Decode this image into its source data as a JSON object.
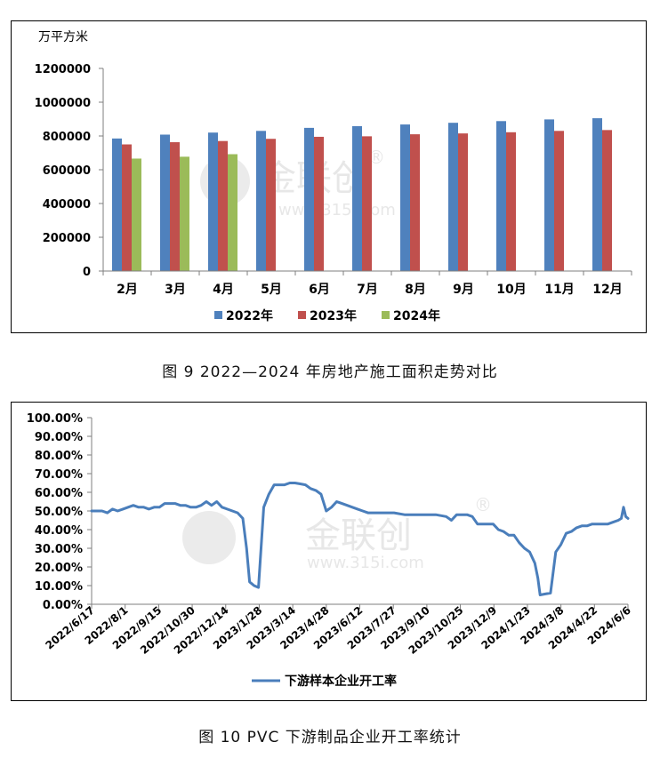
{
  "chart_data": [
    {
      "type": "bar",
      "ylabel": "万平方米",
      "ylim": [
        0,
        1200000
      ],
      "yticks": [
        "0",
        "200000",
        "400000",
        "600000",
        "800000",
        "1000000",
        "1200000"
      ],
      "categories": [
        "2月",
        "3月",
        "4月",
        "5月",
        "6月",
        "7月",
        "8月",
        "9月",
        "10月",
        "11月",
        "12月"
      ],
      "series": [
        {
          "name": "2022年",
          "color": "#4F81BD",
          "values": [
            785000,
            808000,
            820000,
            830000,
            848000,
            858000,
            868000,
            878000,
            888000,
            898000,
            905000
          ]
        },
        {
          "name": "2023年",
          "color": "#C0504D",
          "values": [
            750000,
            763000,
            770000,
            783000,
            795000,
            798000,
            810000,
            815000,
            822000,
            830000,
            835000
          ]
        },
        {
          "name": "2024年",
          "color": "#9BBB59",
          "values": [
            666000,
            677000,
            692000,
            null,
            null,
            null,
            null,
            null,
            null,
            null,
            null
          ]
        }
      ],
      "legend": "bottom",
      "grid": false,
      "watermark": {
        "brand": "金联创",
        "mark": "®",
        "url": "www.315i.com"
      }
    },
    {
      "type": "line",
      "ylim": [
        0,
        1
      ],
      "yticks": [
        "0.00%",
        "10.00%",
        "20.00%",
        "30.00%",
        "40.00%",
        "50.00%",
        "60.00%",
        "70.00%",
        "80.00%",
        "90.00%",
        "100.00%"
      ],
      "xlim": [
        "2022-06-17",
        "2024-06-06"
      ],
      "xticks": [
        "2022/6/17",
        "2022/8/1",
        "2022/9/15",
        "2022/10/30",
        "2022/12/14",
        "2023/1/28",
        "2023/3/14",
        "2023/4/28",
        "2023/6/12",
        "2023/7/27",
        "2023/9/10",
        "2023/10/25",
        "2023/12/9",
        "2024/1/23",
        "2024/3/8",
        "2024/4/22",
        "2024/6/6"
      ],
      "series": [
        {
          "name": "下游样本企业开工率",
          "color": "#4A7EBB",
          "points": [
            [
              "2022-06-17",
              0.5
            ],
            [
              "2022-06-24",
              0.5
            ],
            [
              "2022-07-01",
              0.5
            ],
            [
              "2022-07-08",
              0.49
            ],
            [
              "2022-07-15",
              0.51
            ],
            [
              "2022-07-22",
              0.5
            ],
            [
              "2022-07-29",
              0.51
            ],
            [
              "2022-08-05",
              0.52
            ],
            [
              "2022-08-12",
              0.53
            ],
            [
              "2022-08-19",
              0.52
            ],
            [
              "2022-08-26",
              0.52
            ],
            [
              "2022-09-02",
              0.51
            ],
            [
              "2022-09-09",
              0.52
            ],
            [
              "2022-09-16",
              0.52
            ],
            [
              "2022-09-23",
              0.54
            ],
            [
              "2022-09-30",
              0.54
            ],
            [
              "2022-10-07",
              0.54
            ],
            [
              "2022-10-14",
              0.53
            ],
            [
              "2022-10-21",
              0.53
            ],
            [
              "2022-10-28",
              0.52
            ],
            [
              "2022-11-04",
              0.52
            ],
            [
              "2022-11-11",
              0.53
            ],
            [
              "2022-11-18",
              0.55
            ],
            [
              "2022-11-25",
              0.53
            ],
            [
              "2022-12-02",
              0.55
            ],
            [
              "2022-12-09",
              0.52
            ],
            [
              "2022-12-16",
              0.51
            ],
            [
              "2022-12-23",
              0.5
            ],
            [
              "2022-12-30",
              0.49
            ],
            [
              "2023-01-06",
              0.46
            ],
            [
              "2023-01-11",
              0.3
            ],
            [
              "2023-01-15",
              0.12
            ],
            [
              "2023-01-21",
              0.1
            ],
            [
              "2023-01-27",
              0.09
            ],
            [
              "2023-02-03",
              0.52
            ],
            [
              "2023-02-10",
              0.59
            ],
            [
              "2023-02-17",
              0.64
            ],
            [
              "2023-02-24",
              0.64
            ],
            [
              "2023-03-03",
              0.64
            ],
            [
              "2023-03-10",
              0.65
            ],
            [
              "2023-03-17",
              0.65
            ],
            [
              "2023-03-24",
              0.645
            ],
            [
              "2023-03-31",
              0.64
            ],
            [
              "2023-04-07",
              0.62
            ],
            [
              "2023-04-14",
              0.61
            ],
            [
              "2023-04-21",
              0.59
            ],
            [
              "2023-04-28",
              0.5
            ],
            [
              "2023-05-05",
              0.52
            ],
            [
              "2023-05-12",
              0.55
            ],
            [
              "2023-05-19",
              0.54
            ],
            [
              "2023-05-26",
              0.53
            ],
            [
              "2023-06-02",
              0.52
            ],
            [
              "2023-06-09",
              0.51
            ],
            [
              "2023-06-16",
              0.5
            ],
            [
              "2023-06-23",
              0.49
            ],
            [
              "2023-06-30",
              0.49
            ],
            [
              "2023-07-14",
              0.49
            ],
            [
              "2023-07-28",
              0.49
            ],
            [
              "2023-08-11",
              0.48
            ],
            [
              "2023-08-25",
              0.48
            ],
            [
              "2023-09-08",
              0.48
            ],
            [
              "2023-09-22",
              0.48
            ],
            [
              "2023-10-06",
              0.47
            ],
            [
              "2023-10-13",
              0.45
            ],
            [
              "2023-10-20",
              0.48
            ],
            [
              "2023-10-27",
              0.48
            ],
            [
              "2023-11-03",
              0.48
            ],
            [
              "2023-11-10",
              0.47
            ],
            [
              "2023-11-17",
              0.43
            ],
            [
              "2023-11-24",
              0.43
            ],
            [
              "2023-12-01",
              0.43
            ],
            [
              "2023-12-08",
              0.43
            ],
            [
              "2023-12-15",
              0.4
            ],
            [
              "2023-12-22",
              0.39
            ],
            [
              "2023-12-29",
              0.37
            ],
            [
              "2024-01-05",
              0.37
            ],
            [
              "2024-01-12",
              0.33
            ],
            [
              "2024-01-19",
              0.3
            ],
            [
              "2024-01-26",
              0.28
            ],
            [
              "2024-02-02",
              0.22
            ],
            [
              "2024-02-06",
              0.14
            ],
            [
              "2024-02-09",
              0.05
            ],
            [
              "2024-02-16",
              0.055
            ],
            [
              "2024-02-23",
              0.06
            ],
            [
              "2024-03-01",
              0.28
            ],
            [
              "2024-03-08",
              0.32
            ],
            [
              "2024-03-15",
              0.38
            ],
            [
              "2024-03-22",
              0.39
            ],
            [
              "2024-03-29",
              0.41
            ],
            [
              "2024-04-05",
              0.42
            ],
            [
              "2024-04-12",
              0.42
            ],
            [
              "2024-04-19",
              0.43
            ],
            [
              "2024-04-26",
              0.43
            ],
            [
              "2024-05-03",
              0.43
            ],
            [
              "2024-05-10",
              0.43
            ],
            [
              "2024-05-17",
              0.44
            ],
            [
              "2024-05-24",
              0.45
            ],
            [
              "2024-05-28",
              0.46
            ],
            [
              "2024-05-31",
              0.52
            ],
            [
              "2024-06-03",
              0.47
            ],
            [
              "2024-06-06",
              0.46
            ]
          ]
        }
      ],
      "legend": "bottom",
      "grid": false,
      "watermark": {
        "brand": "金联创",
        "mark": "®",
        "url": "www.315i.com"
      }
    }
  ],
  "captions": {
    "figure9": "图 9  2022—2024 年房地产施工面积走势对比",
    "figure10": "图 10  PVC 下游制品企业开工率统计"
  }
}
